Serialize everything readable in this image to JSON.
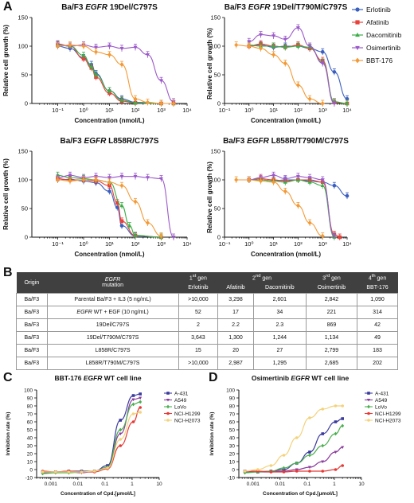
{
  "panel_letters": {
    "A": "A",
    "B": "B",
    "C": "C",
    "D": "D"
  },
  "legend_A": [
    {
      "name": "Erlotinib",
      "color": "#3b5fbf",
      "marker": "circle"
    },
    {
      "name": "Afatinib",
      "color": "#e8413a",
      "marker": "square"
    },
    {
      "name": "Dacomitinib",
      "color": "#3cae47",
      "marker": "triangle-up"
    },
    {
      "name": "Osimertinib",
      "color": "#9b59c9",
      "marker": "triangle-down"
    },
    {
      "name": "BBT-176",
      "color": "#f39a36",
      "marker": "diamond"
    }
  ],
  "chart_data": [
    {
      "type": "line",
      "panel": "A",
      "title_pre": "Ba/F3 ",
      "title_em": "EGFR",
      "title_post": " 19Del/C797S",
      "xlabel": "Concentration (nmol/L)",
      "ylabel": "Relative cell growth (%)",
      "xscale": "log",
      "xlim": [
        0.01,
        10000
      ],
      "ylim": [
        0,
        150
      ],
      "xticks": [
        "10⁻¹",
        "10⁰",
        "10¹",
        "10²",
        "10³",
        "10⁴"
      ],
      "yticks": [
        "0",
        "50",
        "100",
        "150"
      ],
      "series": [
        {
          "name": "Erlotinib",
          "ic50": 2,
          "x": [
            0.1,
            0.3,
            1,
            2,
            3,
            10,
            30,
            100,
            1000,
            3000
          ],
          "y": [
            100,
            96,
            80,
            68,
            52,
            22,
            8,
            2,
            0,
            0
          ]
        },
        {
          "name": "Afatinib",
          "ic50": 2.2,
          "x": [
            0.1,
            0.3,
            1,
            2,
            3,
            10,
            30,
            100,
            1000,
            3000
          ],
          "y": [
            102,
            100,
            78,
            62,
            46,
            18,
            4,
            1,
            0,
            0
          ]
        },
        {
          "name": "Dacomitinib",
          "ic50": 2.3,
          "x": [
            0.1,
            0.3,
            1,
            2,
            3,
            10,
            30,
            100,
            1000,
            3000
          ],
          "y": [
            103,
            100,
            84,
            64,
            50,
            22,
            6,
            1,
            0,
            0
          ]
        },
        {
          "name": "Osimertinib",
          "ic50": 869,
          "x": [
            0.1,
            0.3,
            1,
            3,
            10,
            30,
            100,
            300,
            1000,
            3000
          ],
          "y": [
            104,
            100,
            102,
            98,
            100,
            96,
            98,
            85,
            40,
            3
          ]
        },
        {
          "name": "BBT-176",
          "ic50": 42,
          "x": [
            0.1,
            0.3,
            1,
            3,
            10,
            30,
            100,
            300,
            1000,
            3000
          ],
          "y": [
            100,
            102,
            100,
            90,
            85,
            68,
            8,
            2,
            0,
            0
          ]
        }
      ]
    },
    {
      "type": "line",
      "panel": "A",
      "title_pre": "Ba/F3 ",
      "title_em": "EGFR",
      "title_post": " 19Del/T790M/C797S",
      "xlabel": "Concentration (nmol/L)",
      "ylabel": "Relative cell growth (%)",
      "xscale": "log",
      "xlim": [
        0.1,
        10000
      ],
      "ylim": [
        0,
        150
      ],
      "xticks": [
        "10⁻¹",
        "10⁰",
        "10¹",
        "10²",
        "10³",
        "10⁴"
      ],
      "yticks": [
        "0",
        "50",
        "100",
        "150"
      ],
      "series": [
        {
          "name": "Erlotinib",
          "ic50": 3643,
          "x": [
            1,
            3,
            10,
            30,
            100,
            300,
            1000,
            3000,
            10000
          ],
          "y": [
            100,
            102,
            98,
            100,
            100,
            96,
            90,
            55,
            8
          ]
        },
        {
          "name": "Afatinib",
          "ic50": 1300,
          "x": [
            1,
            3,
            10,
            30,
            100,
            300,
            1000,
            3000,
            10000
          ],
          "y": [
            100,
            104,
            100,
            98,
            102,
            96,
            75,
            2,
            0
          ]
        },
        {
          "name": "Dacomitinib",
          "ic50": 1244,
          "x": [
            1,
            3,
            10,
            30,
            100,
            300,
            1000,
            3000,
            10000
          ],
          "y": [
            102,
            100,
            100,
            98,
            100,
            98,
            72,
            3,
            0
          ]
        },
        {
          "name": "Osimertinib",
          "ic50": 1134,
          "x": [
            1,
            3,
            10,
            30,
            100,
            300,
            1000,
            3000
          ],
          "y": [
            108,
            120,
            118,
            112,
            132,
            100,
            70,
            0
          ]
        },
        {
          "name": "BBT-176",
          "ic50": 49,
          "x": [
            0.3,
            1,
            3,
            10,
            30,
            100,
            300,
            1000
          ],
          "y": [
            102,
            100,
            96,
            85,
            70,
            32,
            8,
            0
          ]
        }
      ]
    },
    {
      "type": "line",
      "panel": "A",
      "title_pre": "Ba/F3 ",
      "title_em": "EGFR",
      "title_post": " L858R/C797S",
      "xlabel": "Concentration (nmol/L)",
      "ylabel": "Relative cell growth (%)",
      "xscale": "log",
      "xlim": [
        0.01,
        10000
      ],
      "ylim": [
        0,
        150
      ],
      "xticks": [
        "10⁻¹",
        "10⁰",
        "10¹",
        "10²",
        "10³",
        "10⁴"
      ],
      "yticks": [
        "0",
        "50",
        "100",
        "150"
      ],
      "series": [
        {
          "name": "Erlotinib",
          "ic50": 15,
          "x": [
            0.1,
            0.3,
            1,
            3,
            10,
            20,
            30,
            100,
            1000
          ],
          "y": [
            100,
            101,
            98,
            95,
            80,
            52,
            20,
            2,
            0
          ]
        },
        {
          "name": "Afatinib",
          "ic50": 20,
          "x": [
            0.1,
            0.3,
            1,
            3,
            10,
            20,
            30,
            100,
            1000
          ],
          "y": [
            102,
            100,
            100,
            98,
            90,
            60,
            28,
            3,
            0
          ]
        },
        {
          "name": "Dacomitinib",
          "ic50": 27,
          "x": [
            0.1,
            0.3,
            1,
            3,
            10,
            30,
            60,
            100,
            1000
          ],
          "y": [
            108,
            104,
            102,
            100,
            96,
            55,
            20,
            3,
            0
          ]
        },
        {
          "name": "Osimertinib",
          "ic50": 2799,
          "x": [
            0.1,
            0.3,
            1,
            3,
            10,
            30,
            100,
            300,
            1000,
            3000
          ],
          "y": [
            104,
            108,
            104,
            106,
            104,
            106,
            106,
            104,
            102,
            0
          ]
        },
        {
          "name": "BBT-176",
          "ic50": 183,
          "x": [
            0.1,
            0.3,
            1,
            3,
            10,
            30,
            100,
            300,
            1000
          ],
          "y": [
            100,
            98,
            100,
            100,
            96,
            90,
            62,
            25,
            2
          ]
        }
      ]
    },
    {
      "type": "line",
      "panel": "A",
      "title_pre": "Ba/F3 ",
      "title_em": "EGFR",
      "title_post": " L858R/T790M/C797S",
      "xlabel": "Concentration (nmol/L)",
      "ylabel": "Relative cell growth (%)",
      "xscale": "log",
      "xlim": [
        0.1,
        10000
      ],
      "ylim": [
        0,
        150
      ],
      "xticks": [
        "10⁻¹",
        "10⁰",
        "10¹",
        "10²",
        "10³",
        "10⁴"
      ],
      "yticks": [
        "0",
        "50",
        "100",
        "150"
      ],
      "series": [
        {
          "name": "Erlotinib",
          "ic50": 10000,
          "x": [
            1,
            3,
            10,
            30,
            100,
            300,
            1000,
            3000,
            10000
          ],
          "y": [
            100,
            100,
            98,
            100,
            100,
            98,
            96,
            90,
            72
          ]
        },
        {
          "name": "Afatinib",
          "ic50": 2987,
          "x": [
            1,
            3,
            10,
            30,
            100,
            300,
            1000,
            3000,
            5000
          ],
          "y": [
            100,
            102,
            100,
            98,
            100,
            100,
            96,
            5,
            0
          ]
        },
        {
          "name": "Dacomitinib",
          "ic50": 1295,
          "x": [
            1,
            3,
            10,
            30,
            100,
            300,
            1000,
            3000
          ],
          "y": [
            100,
            100,
            98,
            96,
            100,
            96,
            90,
            0
          ]
        },
        {
          "name": "Osimertinib",
          "ic50": 2685,
          "x": [
            1,
            3,
            10,
            30,
            100,
            300,
            1000,
            3000
          ],
          "y": [
            100,
            104,
            108,
            102,
            106,
            104,
            100,
            2
          ]
        },
        {
          "name": "BBT-176",
          "ic50": 202,
          "x": [
            0.3,
            1,
            3,
            10,
            30,
            100,
            300,
            1000
          ],
          "y": [
            100,
            100,
            98,
            96,
            80,
            55,
            25,
            2
          ]
        }
      ]
    },
    {
      "type": "line",
      "panel": "C",
      "title_pre": "BBT-176 ",
      "title_em": "EGFR",
      "title_post": " WT cell line",
      "xlabel": "Concentration of Cpd.[μmol/L]",
      "ylabel": "Inhibition rate (%)",
      "xscale": "log",
      "xlim": [
        0.0003,
        10
      ],
      "ylim": [
        -10,
        100
      ],
      "xticks": [
        "0.001",
        "0.01",
        "0.1",
        "1",
        "10"
      ],
      "yticks": [
        "-10",
        "0",
        "10",
        "20",
        "30",
        "40",
        "50",
        "60",
        "70",
        "80",
        "90",
        "100"
      ],
      "series": [
        {
          "name": "A-431",
          "color": "#3b3b9e",
          "marker": "square",
          "x": [
            0.0005,
            0.0015,
            0.0046,
            0.0137,
            0.041,
            0.123,
            0.37,
            1.11,
            2
          ],
          "y": [
            -3,
            -3,
            -2,
            -2,
            -2,
            5,
            62,
            93,
            95
          ]
        },
        {
          "name": "A549",
          "color": "#8a3c9c",
          "marker": "triangle-down",
          "x": [
            0.0005,
            0.0015,
            0.0046,
            0.0137,
            0.041,
            0.123,
            0.37,
            1.11,
            2
          ],
          "y": [
            -4,
            -3,
            -3,
            -4,
            -2,
            2,
            45,
            88,
            90
          ]
        },
        {
          "name": "LoVo",
          "color": "#4caf50",
          "marker": "diamond",
          "x": [
            0.0005,
            0.0015,
            0.0046,
            0.0137,
            0.041,
            0.123,
            0.37,
            1.11,
            2
          ],
          "y": [
            -5,
            -4,
            -4,
            -3,
            -2,
            3,
            50,
            82,
            85
          ]
        },
        {
          "name": "NCI-H1299",
          "color": "#e53935",
          "marker": "circle",
          "x": [
            0.0005,
            0.0015,
            0.0046,
            0.0137,
            0.041,
            0.123,
            0.37,
            1.11,
            2
          ],
          "y": [
            -2,
            -3,
            -2,
            -3,
            -3,
            1,
            30,
            60,
            78
          ]
        },
        {
          "name": "NCI-H2073",
          "color": "#f3d27a",
          "marker": "circle",
          "x": [
            0.0005,
            0.0015,
            0.0046,
            0.0137,
            0.041,
            0.123,
            0.37,
            1.11,
            2
          ],
          "y": [
            -3,
            -3,
            -3,
            -3,
            -2,
            2,
            38,
            70,
            72
          ]
        }
      ]
    },
    {
      "type": "line",
      "panel": "D",
      "title_pre": "Osimertinib ",
      "title_em": "EGFR",
      "title_post": " WT cell line",
      "xlabel": "Concentration of Cpd.[μmol/L]",
      "ylabel": "Inhibition rate (%)",
      "xscale": "log",
      "xlim": [
        0.0003,
        10
      ],
      "ylim": [
        -10,
        100
      ],
      "xticks": [
        "0.001",
        "0.01",
        "0.1",
        "1",
        "10"
      ],
      "yticks": [
        "-10",
        "0",
        "10",
        "20",
        "30",
        "40",
        "50",
        "60",
        "70",
        "80",
        "90",
        "100"
      ],
      "series": [
        {
          "name": "A-431",
          "color": "#3b3b9e",
          "marker": "square",
          "x": [
            0.0005,
            0.0015,
            0.0046,
            0.0137,
            0.041,
            0.123,
            0.37,
            1.11,
            2
          ],
          "y": [
            -2,
            -3,
            -2,
            0,
            8,
            22,
            45,
            60,
            64
          ]
        },
        {
          "name": "A549",
          "color": "#8a3c9c",
          "marker": "triangle-down",
          "x": [
            0.0005,
            0.0015,
            0.0046,
            0.0137,
            0.041,
            0.123,
            0.37,
            1.11,
            2
          ],
          "y": [
            -3,
            -3,
            -3,
            -2,
            0,
            3,
            10,
            22,
            28
          ]
        },
        {
          "name": "LoVo",
          "color": "#4caf50",
          "marker": "diamond",
          "x": [
            0.0005,
            0.0015,
            0.0046,
            0.0137,
            0.041,
            0.123,
            0.37,
            1.11,
            2
          ],
          "y": [
            -4,
            -3,
            -2,
            2,
            8,
            18,
            30,
            45,
            55
          ]
        },
        {
          "name": "NCI-H1299",
          "color": "#e53935",
          "marker": "circle",
          "x": [
            0.0005,
            0.0015,
            0.0046,
            0.0137,
            0.041,
            0.123,
            0.37,
            1.11,
            2
          ],
          "y": [
            -2,
            -2,
            -3,
            -3,
            -2,
            -2,
            -2,
            0,
            5
          ]
        },
        {
          "name": "NCI-H2073",
          "color": "#f3d27a",
          "marker": "circle",
          "x": [
            0.0005,
            0.0015,
            0.0046,
            0.0137,
            0.041,
            0.123,
            0.37,
            1.11,
            2
          ],
          "y": [
            -2,
            0,
            5,
            18,
            40,
            65,
            76,
            80,
            80
          ]
        }
      ]
    },
    {
      "type": "table",
      "panel": "B",
      "gen_headers": [
        {
          "num": "1",
          "sup": "st",
          "suffix": " gen"
        },
        {
          "num": "2",
          "sup": "nd",
          "suffix": " gen"
        },
        {
          "num": "3",
          "sup": "rd",
          "suffix": " gen"
        },
        {
          "num": "4",
          "sup": "th",
          "suffix": " gen"
        }
      ],
      "col_origin": "Origin",
      "col_mutation_em": "EGFR",
      "col_mutation": "mutation",
      "drugs": [
        "Erlotinib",
        "Afatinib",
        "Dacomitinib",
        "Osimertinib",
        "BBT-176"
      ],
      "rows": [
        {
          "origin": "Ba/F3",
          "mut_em": "",
          "mutation": "Parental Ba/F3 + IL3 (5 ng/mL)",
          "values": [
            ">10,000",
            "3,298",
            "2,601",
            "2,842",
            "1,090"
          ]
        },
        {
          "origin": "Ba/F3",
          "mut_em": "EGFR",
          "mutation": " WT + EGF (10 ng/mL)",
          "values": [
            "52",
            "17",
            "34",
            "221",
            "314"
          ]
        },
        {
          "origin": "Ba/F3",
          "mut_em": "",
          "mutation": "19Del/C797S",
          "values": [
            "2",
            "2.2",
            "2.3",
            "869",
            "42"
          ]
        },
        {
          "origin": "Ba/F3",
          "mut_em": "",
          "mutation": "19Del/T790M/C797S",
          "values": [
            "3,643",
            "1,300",
            "1,244",
            "1,134",
            "49"
          ]
        },
        {
          "origin": "Ba/F3",
          "mut_em": "",
          "mutation": "L858R/C797S",
          "values": [
            "15",
            "20",
            "27",
            "2,799",
            "183"
          ]
        },
        {
          "origin": "Ba/F3",
          "mut_em": "",
          "mutation": "L858R/T790M/C797S",
          "values": [
            ">10,000",
            "2,987",
            "1,295",
            "2,685",
            "202"
          ]
        }
      ]
    }
  ]
}
